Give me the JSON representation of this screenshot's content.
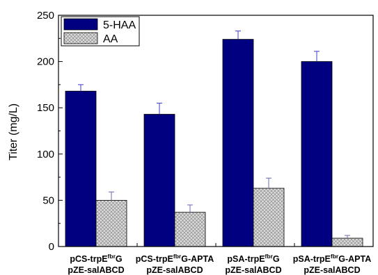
{
  "chart_data": {
    "type": "bar",
    "title": "",
    "xlabel": "",
    "ylabel": "Titer (mg/L)",
    "ylim": [
      0,
      250
    ],
    "yticks": [
      "0",
      "50",
      "100",
      "150",
      "200",
      "250"
    ],
    "grid": false,
    "legend_position": "top-left",
    "categories": [
      {
        "line1": {
          "pre": "pCS-trpE",
          "sup": "fbr",
          "post": "G"
        },
        "line2": "pZE-salABCD"
      },
      {
        "line1": {
          "pre": "pCS-trpE",
          "sup": "fbr",
          "post": "G-APTA"
        },
        "line2": "pZE-salABCD"
      },
      {
        "line1": {
          "pre": "pSA-trpE",
          "sup": "fbr",
          "post": "G"
        },
        "line2": "pZE-salABCD"
      },
      {
        "line1": {
          "pre": "pSA-trpE",
          "sup": "fbr",
          "post": "G-APTA"
        },
        "line2": "pZE-salABCD"
      }
    ],
    "series": [
      {
        "name": "5-HAA",
        "color": "#000080",
        "style": "solid",
        "values": [
          168,
          143,
          224,
          200
        ],
        "errors": [
          7,
          12,
          9,
          11
        ]
      },
      {
        "name": "AA",
        "color": "#d4d4d4",
        "style": "crosshatch",
        "values": [
          50,
          37,
          63,
          9
        ],
        "errors": [
          9,
          8,
          11,
          3
        ]
      }
    ]
  }
}
